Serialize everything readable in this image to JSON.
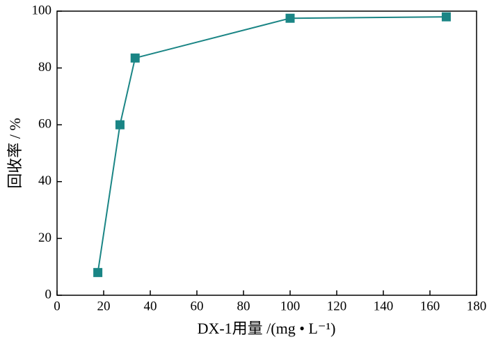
{
  "chart_data": {
    "type": "line",
    "xlabel": "DX-1用量 /(mg • L⁻¹)",
    "ylabel": "回收率 / %",
    "x": [
      17.5,
      27,
      33.5,
      100,
      167
    ],
    "series": [
      {
        "color": "#1a8585",
        "values": [
          8,
          60,
          83.5,
          97.5,
          98
        ]
      }
    ],
    "xlim": [
      0,
      180
    ],
    "xticks": [
      0,
      20,
      40,
      60,
      80,
      100,
      120,
      140,
      160,
      180
    ],
    "ylim": [
      0,
      100
    ],
    "yticks": [
      0,
      20,
      40,
      60,
      80,
      100
    ]
  }
}
